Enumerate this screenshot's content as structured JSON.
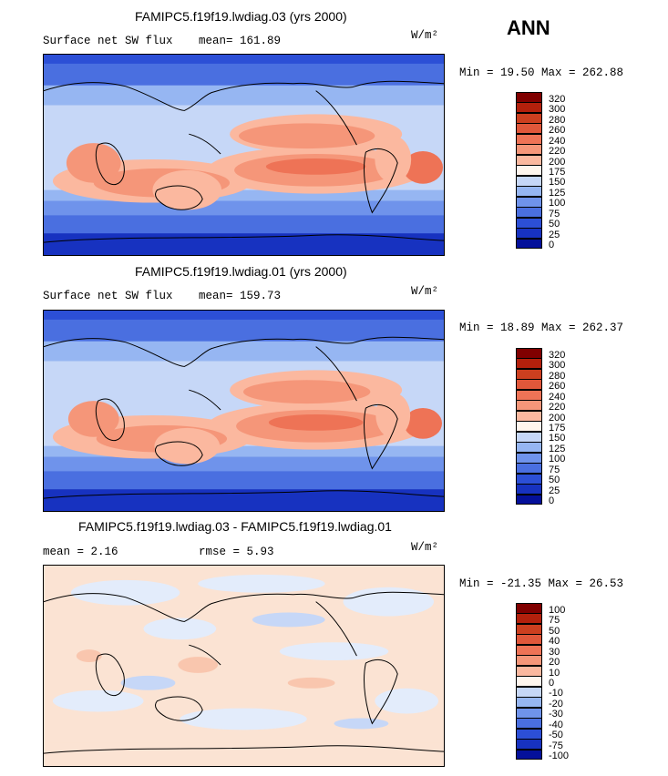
{
  "season": "ANN",
  "panels": [
    {
      "title": "FAMIPC5.f19f19.lwdiag.03 (yrs 2000)",
      "left_label": "Surface net SW flux",
      "stat_label": "mean= 161.89",
      "units": "W/m²",
      "minmax": "Min =  19.50 Max = 262.88",
      "levels": [
        "320",
        "300",
        "280",
        "260",
        "240",
        "220",
        "200",
        "175",
        "150",
        "125",
        "100",
        "75",
        "50",
        "25",
        "0"
      ],
      "colors": [
        "#800000",
        "#b3200c",
        "#cc3f1f",
        "#e0573a",
        "#ee7356",
        "#f59679",
        "#fbb89f",
        "#fff6ed",
        "#c6d7f7",
        "#96b6f2",
        "#6f93eb",
        "#4a6fe0",
        "#2c4fd6",
        "#1732c0",
        "#04109a"
      ]
    },
    {
      "title": "FAMIPC5.f19f19.lwdiag.01 (yrs 2000)",
      "left_label": "Surface net SW flux",
      "stat_label": "mean= 159.73",
      "units": "W/m²",
      "minmax": "Min =  18.89 Max = 262.37",
      "levels": [
        "320",
        "300",
        "280",
        "260",
        "240",
        "220",
        "200",
        "175",
        "150",
        "125",
        "100",
        "75",
        "50",
        "25",
        "0"
      ],
      "colors": [
        "#800000",
        "#b3200c",
        "#cc3f1f",
        "#e0573a",
        "#ee7356",
        "#f59679",
        "#fbb89f",
        "#fff6ed",
        "#c6d7f7",
        "#96b6f2",
        "#6f93eb",
        "#4a6fe0",
        "#2c4fd6",
        "#1732c0",
        "#04109a"
      ]
    },
    {
      "title": "FAMIPC5.f19f19.lwdiag.03 - FAMIPC5.f19f19.lwdiag.01",
      "left_label": "mean =   2.16",
      "stat_label": "rmse =   5.93",
      "units": "W/m²",
      "minmax": "Min = -21.35 Max =  26.53",
      "levels": [
        "100",
        "75",
        "50",
        "40",
        "30",
        "20",
        "10",
        "0",
        "-10",
        "-20",
        "-30",
        "-40",
        "-50",
        "-75",
        "-100"
      ],
      "colors": [
        "#800000",
        "#b3200c",
        "#cc3f1f",
        "#e0573a",
        "#ee7356",
        "#f59679",
        "#fbb89f",
        "#fff6ed",
        "#c6d7f7",
        "#96b6f2",
        "#6f93eb",
        "#4a6fe0",
        "#2c4fd6",
        "#1732c0",
        "#04109a"
      ]
    }
  ]
}
